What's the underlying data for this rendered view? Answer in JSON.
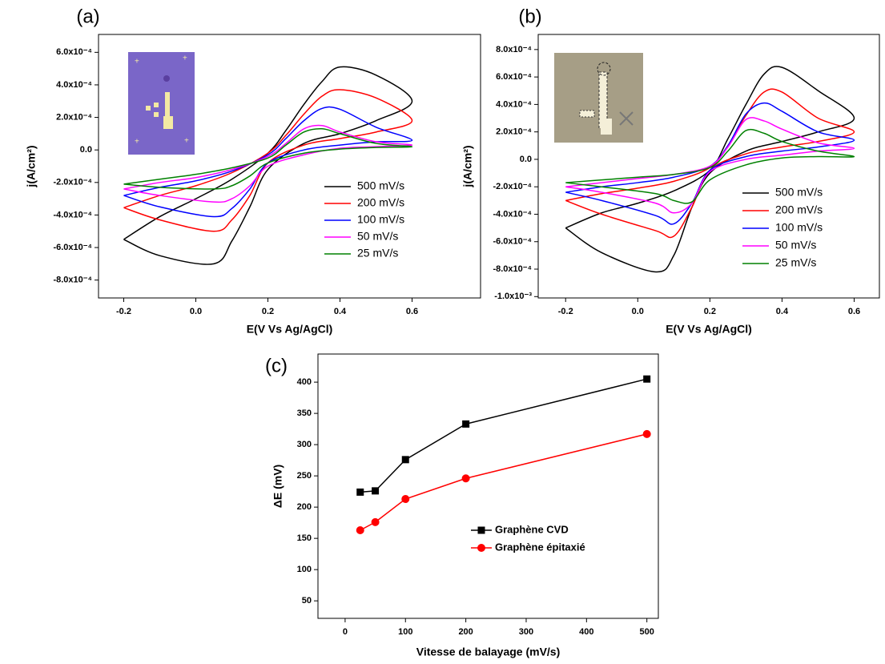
{
  "chart_data": [
    {
      "type": "line",
      "panel_label": "(a)",
      "x_label": "E(V Vs Ag/AgCl)",
      "y_label": "j(A/cm²)",
      "smooth": true,
      "legend": "lower right",
      "xlim": [
        -0.27,
        0.79
      ],
      "ylim": [
        -0.00091,
        0.00071
      ],
      "xticks": [
        -0.2,
        {
          "value": 0,
          "label": "0.0"
        },
        0.2,
        0.4,
        0.6
      ],
      "yticks": [
        {
          "value": 0.0006,
          "label": "6.0x10⁻⁴"
        },
        {
          "value": 0.0004,
          "label": "4.0x10⁻⁴"
        },
        {
          "value": 0.0002,
          "label": "2.0x10⁻⁴"
        },
        {
          "value": 0,
          "label": "0.0"
        },
        {
          "value": -0.0002,
          "label": "-2.0x10⁻⁴"
        },
        {
          "value": -0.0004,
          "label": "-4.0x10⁻⁴"
        },
        {
          "value": -0.0006,
          "label": "-6.0x10⁻⁴"
        },
        {
          "value": -0.0008,
          "label": "-8.0x10⁻⁴"
        }
      ],
      "x": [
        -0.2,
        -0.1,
        0,
        0.1,
        0.2,
        0.25,
        0.3,
        0.35,
        0.4,
        0.5,
        0.6,
        0.5,
        0.4,
        0.3,
        0.2,
        0.15,
        0.1,
        0.05,
        -0.1,
        -0.2
      ],
      "series": [
        {
          "name": "500 mV/s",
          "color": "#000000",
          "values": [
            -0.00055,
            -0.00041,
            -0.0003,
            -0.00018,
            -2e-05,
            0.00012,
            0.00028,
            0.00042,
            0.00051,
            0.00046,
            0.0003,
            0.00018,
            0.0001,
            4e-05,
            -0.00012,
            -0.00035,
            -0.00056,
            -0.0007,
            -0.00065,
            -0.00055
          ]
        },
        {
          "name": "200 mV/s",
          "color": "#ff0000",
          "values": [
            -0.000355,
            -0.00028,
            -0.00022,
            -0.00014,
            -2e-05,
            9e-05,
            0.00022,
            0.00033,
            0.00037,
            0.00032,
            0.00018,
            0.00011,
            7e-05,
            3e-05,
            -8e-05,
            -0.00028,
            -0.00043,
            -0.0005,
            -0.00043,
            -0.000355
          ]
        },
        {
          "name": "100 mV/s",
          "color": "#0000ff",
          "values": [
            -0.00028,
            -0.00023,
            -0.00019,
            -0.00013,
            -3e-05,
            7e-05,
            0.00018,
            0.000255,
            0.00025,
            0.00014,
            6e-05,
            5e-05,
            3e-05,
            0,
            -8e-05,
            -0.00024,
            -0.00036,
            -0.00041,
            -0.00035,
            -0.00028
          ]
        },
        {
          "name": "50 mV/s",
          "color": "#ff00ff",
          "values": [
            -0.00024,
            -0.0002,
            -0.00017,
            -0.00012,
            -4e-05,
            4e-05,
            0.00013,
            0.00015,
            0.00011,
            5e-05,
            3e-05,
            2e-05,
            1e-05,
            -3e-05,
            -0.0001,
            -0.00022,
            -0.0003,
            -0.00032,
            -0.00028,
            -0.00024
          ]
        },
        {
          "name": "25 mV/s",
          "color": "#008000",
          "values": [
            -0.00021,
            -0.00018,
            -0.00015,
            -0.00011,
            -5e-05,
            3e-05,
            0.00011,
            0.00013,
            0.0001,
            4e-05,
            2e-05,
            1.5e-05,
            5e-06,
            -2e-05,
            -8e-05,
            -0.00016,
            -0.00022,
            -0.00024,
            -0.00023,
            -0.00021
          ]
        }
      ]
    },
    {
      "type": "line",
      "panel_label": "(b)",
      "x_label": "E(V Vs Ag/AgCl)",
      "y_label": "j(A/cm²)",
      "smooth": true,
      "legend": "lower right",
      "xlim": [
        -0.276,
        0.67
      ],
      "ylim": [
        -0.00101,
        0.00091
      ],
      "xticks": [
        -0.2,
        {
          "value": 0,
          "label": "0.0"
        },
        0.2,
        0.4,
        0.6
      ],
      "yticks": [
        {
          "value": 0.0008,
          "label": "8.0x10⁻⁴"
        },
        {
          "value": 0.0006,
          "label": "6.0x10⁻⁴"
        },
        {
          "value": 0.0004,
          "label": "4.0x10⁻⁴"
        },
        {
          "value": 0.0002,
          "label": "2.0x10⁻⁴"
        },
        {
          "value": 0,
          "label": "0.0"
        },
        {
          "value": -0.0002,
          "label": "-2.0x10⁻⁴"
        },
        {
          "value": -0.0004,
          "label": "-4.0x10⁻⁴"
        },
        {
          "value": -0.0006,
          "label": "-6.0x10⁻⁴"
        },
        {
          "value": -0.0008,
          "label": "-8.0x10⁻⁴"
        },
        {
          "value": -0.001,
          "label": "-1.0x10⁻³"
        }
      ],
      "x": [
        -0.2,
        -0.1,
        0,
        0.1,
        0.2,
        0.25,
        0.3,
        0.35,
        0.4,
        0.5,
        0.6,
        0.5,
        0.4,
        0.3,
        0.2,
        0.15,
        0.1,
        0.05,
        -0.1,
        -0.2
      ],
      "series": [
        {
          "name": "500 mV/s",
          "color": "#000000",
          "values": [
            -0.0005,
            -0.00039,
            -0.00032,
            -0.00023,
            -8e-05,
            0.00015,
            0.0004,
            0.00062,
            0.00067,
            0.0005,
            0.0003,
            0.0002,
            0.00013,
            6e-05,
            -0.0001,
            -0.00035,
            -0.0007,
            -0.00082,
            -0.00068,
            -0.0005
          ]
        },
        {
          "name": "200 mV/s",
          "color": "#ff0000",
          "values": [
            -0.0003,
            -0.00025,
            -0.00021,
            -0.00016,
            -6e-05,
            0.0001,
            0.00032,
            0.00049,
            0.00049,
            0.0003,
            0.0002,
            0.00013,
            9e-05,
            4e-05,
            -8e-05,
            -0.00035,
            -0.00056,
            -0.00052,
            -0.0004,
            -0.0003
          ]
        },
        {
          "name": "100 mV/s",
          "color": "#0000ff",
          "values": [
            -0.00024,
            -0.0002,
            -0.00017,
            -0.00013,
            -5e-05,
            0.0001,
            0.00033,
            0.00041,
            0.00035,
            0.0002,
            0.00014,
            9e-05,
            6e-05,
            2e-05,
            -8e-05,
            -0.00032,
            -0.00047,
            -0.00041,
            -0.0003,
            -0.00024
          ]
        },
        {
          "name": "50 mV/s",
          "color": "#ff00ff",
          "values": [
            -0.0002,
            -0.00017,
            -0.00014,
            -0.00011,
            -5e-05,
            9e-05,
            0.00029,
            0.00028,
            0.00022,
            0.00012,
            8e-05,
            6e-05,
            3e-05,
            0,
            -9e-05,
            -0.00032,
            -0.00039,
            -0.00032,
            -0.00024,
            -0.0002
          ]
        },
        {
          "name": "25 mV/s",
          "color": "#008000",
          "values": [
            -0.00017,
            -0.00015,
            -0.00013,
            -0.00011,
            -6e-05,
            6e-05,
            0.00021,
            0.00019,
            0.00013,
            6e-05,
            2e-05,
            2e-05,
            1e-05,
            -4e-05,
            -0.00015,
            -0.00031,
            -0.0003,
            -0.00025,
            -0.0002,
            -0.00017
          ]
        }
      ]
    },
    {
      "type": "line",
      "panel_label": "(c)",
      "x_label": "Vitesse de balayage (mV/s)",
      "y_label": "ΔE (mV)",
      "smooth": false,
      "legend": "lower center",
      "xlim": [
        -45,
        519
      ],
      "ylim": [
        22,
        445
      ],
      "xticks": [
        0,
        100,
        200,
        300,
        400,
        500
      ],
      "yticks": [
        50,
        100,
        150,
        200,
        250,
        300,
        350,
        400
      ],
      "x": [
        25,
        50,
        100,
        200,
        500
      ],
      "series": [
        {
          "name": "Graphène CVD",
          "color": "#000000",
          "marker": "square",
          "values": [
            224,
            226,
            276,
            333,
            405
          ]
        },
        {
          "name": "Graphène épitaxié",
          "color": "#ff0000",
          "marker": "circle",
          "values": [
            163,
            176,
            213,
            246,
            317
          ]
        }
      ]
    }
  ]
}
